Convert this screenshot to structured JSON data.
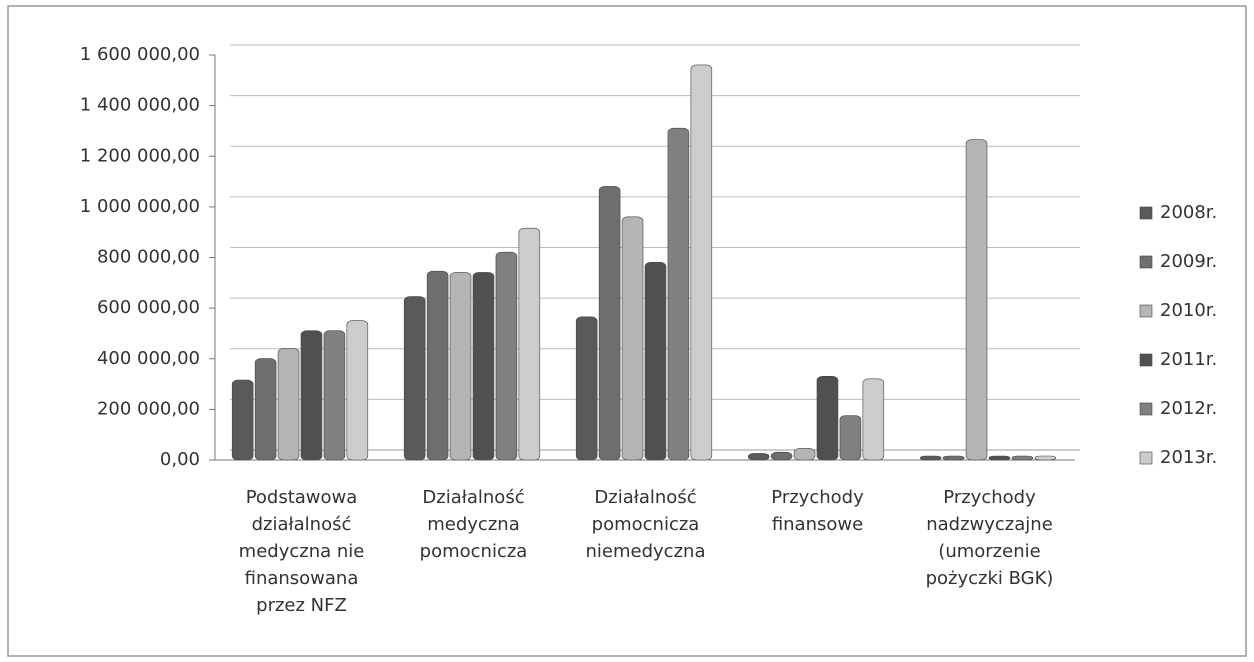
{
  "chart_data": {
    "type": "bar",
    "categories": [
      "Podstawowa działalność medyczna nie finansowana przez NFZ",
      "Działalność medyczna pomocnicza",
      "Działalność pomocnicza niemedyczna",
      "Przychody finansowe",
      "Przychody nadzwyczajne (umorzenie pożyczki BGK)"
    ],
    "series": [
      {
        "name": "2008r.",
        "color": "#5a5a5a",
        "values": [
          300000,
          630000,
          550000,
          10000,
          0
        ]
      },
      {
        "name": "2009r.",
        "color": "#6e6e6e",
        "values": [
          385000,
          730000,
          1065000,
          15000,
          0
        ]
      },
      {
        "name": "2010r.",
        "color": "#b4b4b4",
        "values": [
          425000,
          725000,
          945000,
          30000,
          1250000
        ]
      },
      {
        "name": "2011r.",
        "color": "#505050",
        "values": [
          495000,
          725000,
          765000,
          315000,
          0
        ]
      },
      {
        "name": "2012r.",
        "color": "#808080",
        "values": [
          495000,
          805000,
          1295000,
          160000,
          0
        ]
      },
      {
        "name": "2013r.",
        "color": "#cccccc",
        "values": [
          535000,
          900000,
          1545000,
          305000,
          0
        ]
      }
    ],
    "ylim": [
      0,
      1600000
    ],
    "yticks": [
      {
        "value": 0,
        "label": "0,00"
      },
      {
        "value": 200000,
        "label": "200 000,00"
      },
      {
        "value": 400000,
        "label": "400 000,00"
      },
      {
        "value": 600000,
        "label": "600 000,00"
      },
      {
        "value": 800000,
        "label": "800 000,00"
      },
      {
        "value": 1000000,
        "label": "1 000 000,00"
      },
      {
        "value": 1200000,
        "label": "1 200 000,00"
      },
      {
        "value": 1400000,
        "label": "1 400 000,00"
      },
      {
        "value": 1600000,
        "label": "1 600 000,00"
      }
    ],
    "grid": true,
    "legend": "right"
  }
}
